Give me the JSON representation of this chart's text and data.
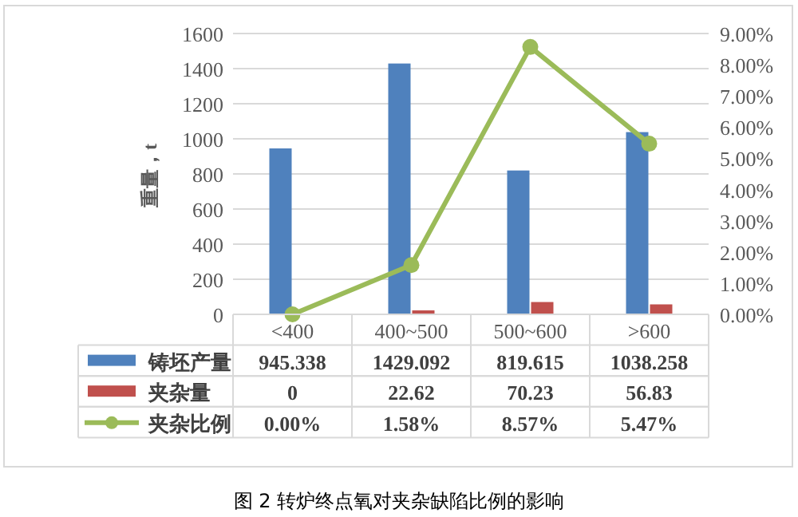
{
  "chart_data": {
    "type": "bar",
    "ylabel": "重量，t",
    "categories": [
      "<400",
      "400~500",
      "500~600",
      ">600"
    ],
    "series": [
      {
        "name": "铸坯产量",
        "color": "#4f81bd",
        "values": [
          945.338,
          1429.092,
          819.615,
          1038.258
        ],
        "value_labels": [
          "945.338",
          "1429.092",
          "819.615",
          "1038.258"
        ]
      },
      {
        "name": "夹杂量",
        "color": "#c0504d",
        "values": [
          0,
          22.62,
          70.23,
          56.83
        ],
        "value_labels": [
          "0",
          "22.62",
          "70.23",
          "56.83"
        ]
      },
      {
        "name": "夹杂比例",
        "type": "line",
        "axis": "y2",
        "color": "#9bbb59",
        "marker": "circle",
        "values": [
          0,
          1.58,
          8.57,
          5.47
        ],
        "value_labels": [
          "0.00%",
          "1.58%",
          "8.57%",
          "5.47%"
        ]
      }
    ],
    "ylim": [
      0,
      1600
    ],
    "yticks": [
      0,
      200,
      400,
      600,
      800,
      1000,
      1200,
      1400,
      1600
    ],
    "y2lim": [
      0,
      9
    ],
    "y2ticks": [
      {
        "value": 0,
        "label": "0.00%"
      },
      {
        "value": 1,
        "label": "1.00%"
      },
      {
        "value": 2,
        "label": "2.00%"
      },
      {
        "value": 3,
        "label": "3.00%"
      },
      {
        "value": 4,
        "label": "4.00%"
      },
      {
        "value": 5,
        "label": "5.00%"
      },
      {
        "value": 6,
        "label": "6.00%"
      },
      {
        "value": 7,
        "label": "7.00%"
      },
      {
        "value": 8,
        "label": "8.00%"
      },
      {
        "value": 9,
        "label": "9.00%"
      }
    ],
    "grid": "y",
    "legend": "bottom",
    "annotations": [
      "图 2  转炉终点氧对夹杂缺陷比例的影响"
    ]
  }
}
